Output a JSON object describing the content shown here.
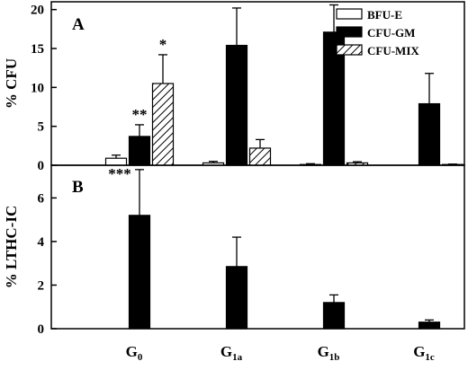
{
  "chart_data": [
    {
      "type": "bar",
      "panel": "A",
      "ylabel": "% CFU",
      "ylim": [
        0,
        21
      ],
      "yticks": [
        0,
        5,
        10,
        15,
        20
      ],
      "categories": [
        "G0",
        "G1a",
        "G1b",
        "G1c"
      ],
      "series": [
        {
          "name": "BFU-E",
          "values": [
            0.9,
            0.3,
            0.1,
            0.0
          ],
          "errors": [
            0.4,
            0.2,
            0.1,
            0.0
          ],
          "fill": "#ffffff",
          "pattern": "none"
        },
        {
          "name": "CFU-GM",
          "values": [
            3.7,
            15.4,
            17.1,
            7.9
          ],
          "errors": [
            1.5,
            4.8,
            3.5,
            3.9
          ],
          "fill": "#000000",
          "pattern": "none"
        },
        {
          "name": "CFU-MIX",
          "values": [
            10.5,
            2.2,
            0.3,
            0.1
          ],
          "errors": [
            3.7,
            1.1,
            0.15,
            0.05
          ],
          "fill": "#ffffff",
          "pattern": "hatch"
        }
      ],
      "annotations": [
        {
          "text": "**",
          "category": "G0",
          "series": "CFU-GM"
        },
        {
          "text": "*",
          "category": "G0",
          "series": "CFU-MIX"
        }
      ],
      "legend": "top-right"
    },
    {
      "type": "bar",
      "panel": "B",
      "ylabel": "% LTHC-IC",
      "ylim": [
        0,
        7.5
      ],
      "yticks": [
        0,
        2,
        4,
        6
      ],
      "categories": [
        "G0",
        "G1a",
        "G1b",
        "G1c"
      ],
      "series": [
        {
          "values": [
            5.2,
            2.85,
            1.2,
            0.3
          ],
          "errors": [
            2.1,
            1.35,
            0.35,
            0.1
          ],
          "fill": "#000000",
          "pattern": "none"
        }
      ],
      "annotations": [
        {
          "text": "***",
          "category": "G0"
        }
      ]
    }
  ],
  "x_axis_labels": [
    {
      "main": "G",
      "sub": "0"
    },
    {
      "main": "G",
      "sub": "1a"
    },
    {
      "main": "G",
      "sub": "1b"
    },
    {
      "main": "G",
      "sub": "1c"
    }
  ]
}
